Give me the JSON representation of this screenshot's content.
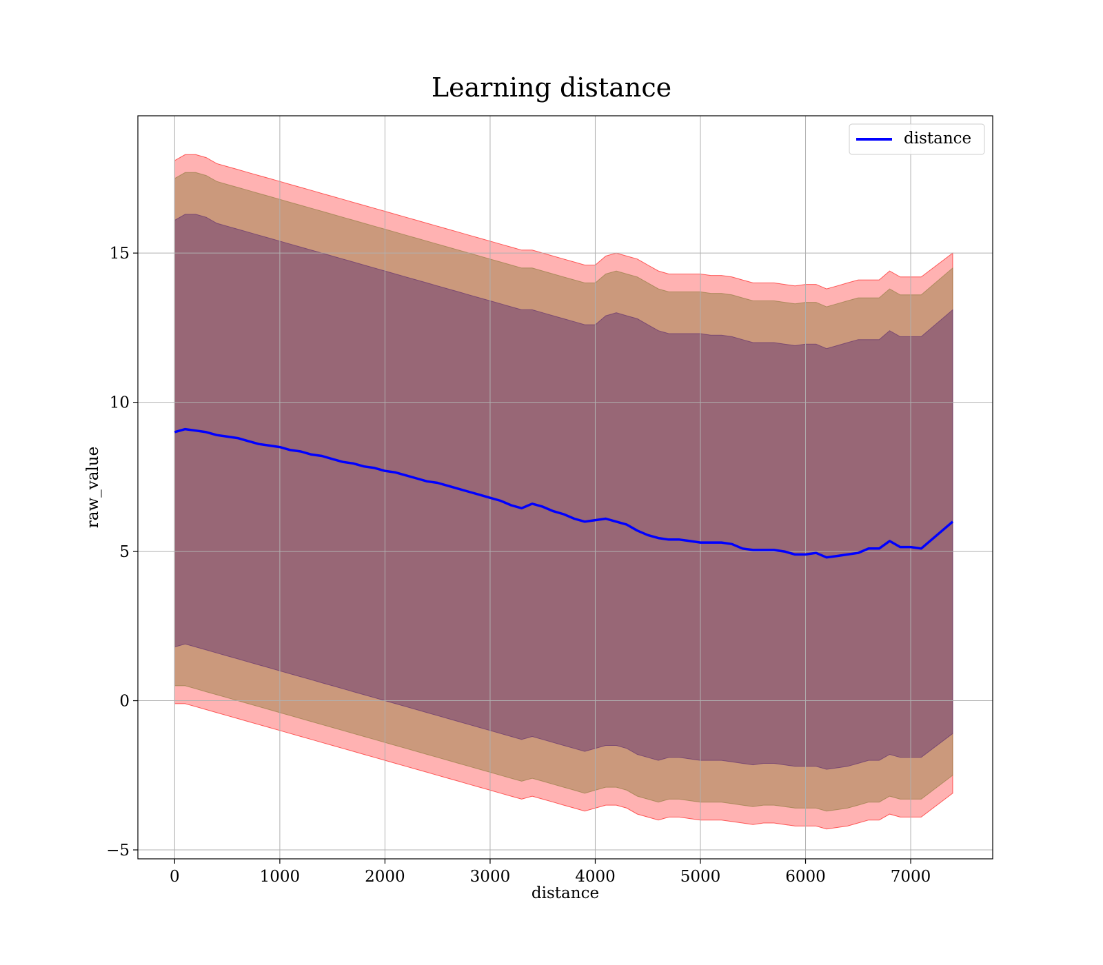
{
  "chart_data": {
    "type": "line",
    "title": "Learning distance",
    "xlabel": "distance",
    "ylabel": "raw_value",
    "xlim": [
      -350,
      7780
    ],
    "ylim": [
      -5.3,
      19.6
    ],
    "xticks": [
      0,
      1000,
      2000,
      3000,
      4000,
      5000,
      6000,
      7000
    ],
    "yticks": [
      -5,
      0,
      5,
      10,
      15
    ],
    "ytick_labels": [
      "−5",
      "0",
      "5",
      "10",
      "15"
    ],
    "grid": true,
    "legend": {
      "position": "top-right",
      "entries": [
        "distance"
      ]
    },
    "series": [
      {
        "name": "distance",
        "color": "#0000ff",
        "x": [
          0,
          100,
          200,
          300,
          400,
          500,
          600,
          700,
          800,
          900,
          1000,
          1100,
          1200,
          1300,
          1400,
          1500,
          1600,
          1700,
          1800,
          1900,
          2000,
          2100,
          2200,
          2300,
          2400,
          2500,
          2600,
          2700,
          2800,
          2900,
          3000,
          3100,
          3200,
          3300,
          3400,
          3500,
          3600,
          3700,
          3800,
          3900,
          4000,
          4100,
          4200,
          4300,
          4400,
          4500,
          4600,
          4700,
          4800,
          4900,
          5000,
          5100,
          5200,
          5300,
          5400,
          5500,
          5600,
          5700,
          5800,
          5900,
          6000,
          6100,
          6200,
          6300,
          6400,
          6500,
          6600,
          6700,
          6800,
          6900,
          7000,
          7100,
          7400
        ],
        "y": [
          9.0,
          9.1,
          9.05,
          9.0,
          8.9,
          8.85,
          8.8,
          8.7,
          8.6,
          8.55,
          8.5,
          8.4,
          8.35,
          8.25,
          8.2,
          8.1,
          8.0,
          7.95,
          7.85,
          7.8,
          7.7,
          7.65,
          7.55,
          7.45,
          7.35,
          7.3,
          7.2,
          7.1,
          7.0,
          6.9,
          6.8,
          6.7,
          6.55,
          6.45,
          6.6,
          6.5,
          6.35,
          6.25,
          6.1,
          6.0,
          6.05,
          6.1,
          6.0,
          5.9,
          5.7,
          5.55,
          5.45,
          5.4,
          5.4,
          5.35,
          5.3,
          5.3,
          5.3,
          5.25,
          5.1,
          5.05,
          5.05,
          5.05,
          5.0,
          4.9,
          4.9,
          4.95,
          4.8,
          4.85,
          4.9,
          4.95,
          5.1,
          5.1,
          5.35,
          5.15,
          5.15,
          5.1,
          6.0
        ]
      }
    ],
    "bands": [
      {
        "color": "#ff0000",
        "opacity": 0.3,
        "upper": [
          18.1,
          18.3,
          18.3,
          18.2,
          18.0,
          17.9,
          17.8,
          17.7,
          17.6,
          17.5,
          17.4,
          17.3,
          17.2,
          17.1,
          17.0,
          16.9,
          16.8,
          16.7,
          16.6,
          16.5,
          16.4,
          16.3,
          16.2,
          16.1,
          16.0,
          15.9,
          15.8,
          15.7,
          15.6,
          15.5,
          15.4,
          15.3,
          15.2,
          15.1,
          15.1,
          15.0,
          14.9,
          14.8,
          14.7,
          14.6,
          14.6,
          14.9,
          15.0,
          14.9,
          14.8,
          14.6,
          14.4,
          14.3,
          14.3,
          14.3,
          14.3,
          14.25,
          14.25,
          14.2,
          14.1,
          14.0,
          14.0,
          14.0,
          13.95,
          13.9,
          13.95,
          13.95,
          13.8,
          13.9,
          14.0,
          14.1,
          14.1,
          14.1,
          14.4,
          14.2,
          14.2,
          14.2,
          15.0
        ],
        "lower": [
          -0.1,
          -0.1,
          -0.2,
          -0.3,
          -0.4,
          -0.5,
          -0.6,
          -0.7,
          -0.8,
          -0.9,
          -1.0,
          -1.1,
          -1.2,
          -1.3,
          -1.4,
          -1.5,
          -1.6,
          -1.7,
          -1.8,
          -1.9,
          -2.0,
          -2.1,
          -2.2,
          -2.3,
          -2.4,
          -2.5,
          -2.6,
          -2.7,
          -2.8,
          -2.9,
          -3.0,
          -3.1,
          -3.2,
          -3.3,
          -3.2,
          -3.3,
          -3.4,
          -3.5,
          -3.6,
          -3.7,
          -3.6,
          -3.5,
          -3.5,
          -3.6,
          -3.8,
          -3.9,
          -4.0,
          -3.9,
          -3.9,
          -3.95,
          -4.0,
          -4.0,
          -4.0,
          -4.05,
          -4.1,
          -4.15,
          -4.1,
          -4.1,
          -4.15,
          -4.2,
          -4.2,
          -4.2,
          -4.3,
          -4.25,
          -4.2,
          -4.1,
          -4.0,
          -4.0,
          -3.8,
          -3.9,
          -3.9,
          -3.9,
          -3.1
        ]
      },
      {
        "color": "#8b7a3a",
        "opacity": 0.45,
        "upper": [
          17.5,
          17.7,
          17.7,
          17.6,
          17.4,
          17.3,
          17.2,
          17.1,
          17.0,
          16.9,
          16.8,
          16.7,
          16.6,
          16.5,
          16.4,
          16.3,
          16.2,
          16.1,
          16.0,
          15.9,
          15.8,
          15.7,
          15.6,
          15.5,
          15.4,
          15.3,
          15.2,
          15.1,
          15.0,
          14.9,
          14.8,
          14.7,
          14.6,
          14.5,
          14.5,
          14.4,
          14.3,
          14.2,
          14.1,
          14.0,
          14.0,
          14.3,
          14.4,
          14.3,
          14.2,
          14.0,
          13.8,
          13.7,
          13.7,
          13.7,
          13.7,
          13.65,
          13.65,
          13.6,
          13.5,
          13.4,
          13.4,
          13.4,
          13.35,
          13.3,
          13.35,
          13.35,
          13.2,
          13.3,
          13.4,
          13.5,
          13.5,
          13.5,
          13.8,
          13.6,
          13.6,
          13.6,
          14.5
        ],
        "lower": [
          0.5,
          0.5,
          0.4,
          0.3,
          0.2,
          0.1,
          0.0,
          -0.1,
          -0.2,
          -0.3,
          -0.4,
          -0.5,
          -0.6,
          -0.7,
          -0.8,
          -0.9,
          -1.0,
          -1.1,
          -1.2,
          -1.3,
          -1.4,
          -1.5,
          -1.6,
          -1.7,
          -1.8,
          -1.9,
          -2.0,
          -2.1,
          -2.2,
          -2.3,
          -2.4,
          -2.5,
          -2.6,
          -2.7,
          -2.6,
          -2.7,
          -2.8,
          -2.9,
          -3.0,
          -3.1,
          -3.0,
          -2.9,
          -2.9,
          -3.0,
          -3.2,
          -3.3,
          -3.4,
          -3.3,
          -3.3,
          -3.35,
          -3.4,
          -3.4,
          -3.4,
          -3.45,
          -3.5,
          -3.55,
          -3.5,
          -3.5,
          -3.55,
          -3.6,
          -3.6,
          -3.6,
          -3.7,
          -3.65,
          -3.6,
          -3.5,
          -3.4,
          -3.4,
          -3.2,
          -3.3,
          -3.3,
          -3.3,
          -2.5
        ]
      },
      {
        "color": "#5a2a6e",
        "opacity": 0.45,
        "upper": [
          16.1,
          16.3,
          16.3,
          16.2,
          16.0,
          15.9,
          15.8,
          15.7,
          15.6,
          15.5,
          15.4,
          15.3,
          15.2,
          15.1,
          15.0,
          14.9,
          14.8,
          14.7,
          14.6,
          14.5,
          14.4,
          14.3,
          14.2,
          14.1,
          14.0,
          13.9,
          13.8,
          13.7,
          13.6,
          13.5,
          13.4,
          13.3,
          13.2,
          13.1,
          13.1,
          13.0,
          12.9,
          12.8,
          12.7,
          12.6,
          12.6,
          12.9,
          13.0,
          12.9,
          12.8,
          12.6,
          12.4,
          12.3,
          12.3,
          12.3,
          12.3,
          12.25,
          12.25,
          12.2,
          12.1,
          12.0,
          12.0,
          12.0,
          11.95,
          11.9,
          11.95,
          11.95,
          11.8,
          11.9,
          12.0,
          12.1,
          12.1,
          12.1,
          12.4,
          12.2,
          12.2,
          12.2,
          13.1
        ],
        "lower": [
          1.8,
          1.9,
          1.8,
          1.7,
          1.6,
          1.5,
          1.4,
          1.3,
          1.2,
          1.1,
          1.0,
          0.9,
          0.8,
          0.7,
          0.6,
          0.5,
          0.4,
          0.3,
          0.2,
          0.1,
          0.0,
          -0.1,
          -0.2,
          -0.3,
          -0.4,
          -0.5,
          -0.6,
          -0.7,
          -0.8,
          -0.9,
          -1.0,
          -1.1,
          -1.2,
          -1.3,
          -1.2,
          -1.3,
          -1.4,
          -1.5,
          -1.6,
          -1.7,
          -1.6,
          -1.5,
          -1.5,
          -1.6,
          -1.8,
          -1.9,
          -2.0,
          -1.9,
          -1.9,
          -1.95,
          -2.0,
          -2.0,
          -2.0,
          -2.05,
          -2.1,
          -2.15,
          -2.1,
          -2.1,
          -2.15,
          -2.2,
          -2.2,
          -2.2,
          -2.3,
          -2.25,
          -2.2,
          -2.1,
          -2.0,
          -2.0,
          -1.8,
          -1.9,
          -1.9,
          -1.9,
          -1.1
        ]
      }
    ]
  }
}
